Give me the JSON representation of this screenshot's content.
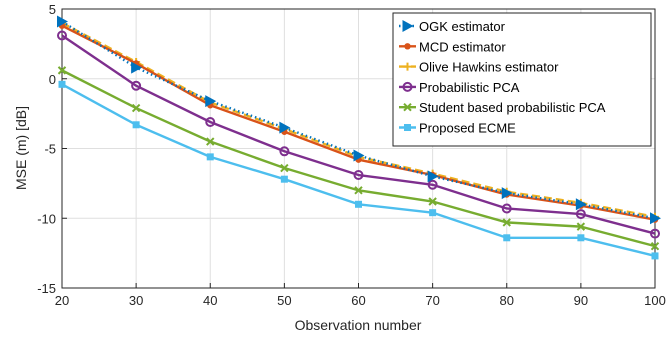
{
  "chart_data": {
    "type": "line",
    "title": "",
    "xlabel": "Observation number",
    "ylabel": "MSE (m) [dB]",
    "xlim": [
      20,
      100
    ],
    "ylim": [
      -15,
      5
    ],
    "x_ticks": [
      20,
      30,
      40,
      50,
      60,
      70,
      80,
      90,
      100
    ],
    "y_ticks": [
      5,
      0,
      -5,
      -10,
      -15
    ],
    "grid": true,
    "legend_position": "top-right",
    "x": [
      20,
      30,
      40,
      50,
      60,
      70,
      80,
      90,
      100
    ],
    "series": [
      {
        "name": "OGK estimator",
        "color": "#0072BD",
        "marker": "triangle-right",
        "style": "dotted",
        "values": [
          4.1,
          0.8,
          -1.6,
          -3.5,
          -5.5,
          -7.0,
          -8.2,
          -9.0,
          -10.0
        ]
      },
      {
        "name": "MCD estimator",
        "color": "#D95319",
        "marker": "dot",
        "style": "solid",
        "values": [
          3.8,
          1.1,
          -1.9,
          -3.8,
          -5.8,
          -6.9,
          -8.3,
          -9.1,
          -10.1
        ]
      },
      {
        "name": "Olive Hawkins estimator",
        "color": "#EDB120",
        "marker": "plus",
        "style": "dashed",
        "values": [
          4.0,
          1.2,
          -1.7,
          -3.6,
          -5.6,
          -6.8,
          -8.1,
          -8.9,
          -9.9
        ]
      },
      {
        "name": "Probabilistic PCA",
        "color": "#7E2F8E",
        "marker": "circle",
        "style": "solid",
        "values": [
          3.1,
          -0.5,
          -3.1,
          -5.2,
          -6.9,
          -7.6,
          -9.3,
          -9.7,
          -11.1
        ]
      },
      {
        "name": "Student based probabilistic PCA",
        "color": "#77AC30",
        "marker": "x",
        "style": "solid",
        "values": [
          0.6,
          -2.1,
          -4.5,
          -6.4,
          -8.0,
          -8.8,
          -10.3,
          -10.6,
          -12.0
        ]
      },
      {
        "name": "Proposed ECME",
        "color": "#4DBEEE",
        "marker": "square",
        "style": "solid",
        "values": [
          -0.4,
          -3.3,
          -5.6,
          -7.2,
          -9.0,
          -9.6,
          -11.4,
          -11.4,
          -12.7
        ]
      }
    ]
  }
}
